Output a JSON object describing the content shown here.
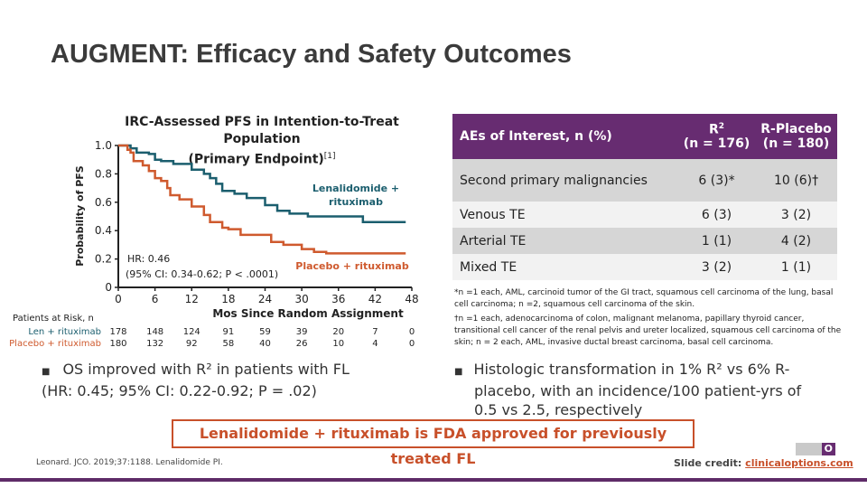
{
  "title": "AUGMENT: Efficacy and Safety Outcomes",
  "colors": {
    "len": "#1b5e6e",
    "placebo": "#cf5a2e",
    "header": "#672c71",
    "accent": "#c8502a"
  },
  "chart_data": {
    "type": "line",
    "title": "IRC-Assessed PFS in Intention-to-Treat Population",
    "title2": "(Primary Endpoint)",
    "title_ref": "[1]",
    "xlabel": "Mos Since Random Assignment",
    "ylabel": "Probability of PFS",
    "xlim": [
      0,
      48
    ],
    "ylim": [
      0,
      1.0
    ],
    "xticks": [
      "0",
      "6",
      "12",
      "18",
      "24",
      "30",
      "36",
      "42",
      "48"
    ],
    "yticks": [
      "0",
      "0.2",
      "0.4",
      "0.6",
      "0.8",
      "1.0"
    ],
    "series": [
      {
        "name": "Lenalidomide + rituximab",
        "step": true,
        "x": [
          0,
          2,
          3,
          5,
          6,
          7,
          9,
          12,
          14,
          15,
          16,
          17,
          19,
          21,
          24,
          26,
          28,
          31,
          40,
          47
        ],
        "y": [
          1,
          0.98,
          0.95,
          0.94,
          0.9,
          0.89,
          0.87,
          0.83,
          0.8,
          0.77,
          0.73,
          0.68,
          0.66,
          0.63,
          0.58,
          0.54,
          0.52,
          0.5,
          0.46,
          0.46
        ]
      },
      {
        "name": "Placebo + rituximab",
        "step": true,
        "x": [
          0,
          1.5,
          2,
          2.5,
          4,
          5,
          6,
          7,
          8,
          8.5,
          10,
          12,
          14,
          15,
          17,
          18,
          20,
          25,
          27,
          30,
          32,
          34,
          47
        ],
        "y": [
          1,
          0.97,
          0.95,
          0.89,
          0.86,
          0.82,
          0.77,
          0.75,
          0.7,
          0.65,
          0.62,
          0.57,
          0.51,
          0.46,
          0.42,
          0.41,
          0.37,
          0.32,
          0.3,
          0.27,
          0.25,
          0.24,
          0.24
        ]
      }
    ],
    "annotation_hr": "HR: 0.46",
    "annotation_ci": "(95% CI: 0.34-0.62; P < .0001)",
    "at_risk": {
      "label": "Patients at Risk, n",
      "rows": [
        {
          "name": "Len + rituximab",
          "values": [
            "178",
            "148",
            "124",
            "91",
            "59",
            "39",
            "20",
            "7",
            "0"
          ]
        },
        {
          "name": "Placebo + rituximab",
          "values": [
            "180",
            "132",
            "92",
            "58",
            "40",
            "26",
            "10",
            "4",
            "0"
          ]
        }
      ]
    }
  },
  "table": {
    "headers": [
      "AEs of Interest, n (%)",
      "R² (n = 176)",
      "R-Placebo (n = 180)"
    ],
    "h1a": "R",
    "h1sup": "2",
    "h1b": "(n = 176)",
    "h2a": "R-Placebo",
    "h2b": "(n = 180)",
    "rows": [
      [
        "Second primary malignancies",
        "6 (3)*",
        "10 (6)†"
      ],
      [
        "Venous TE",
        "6 (3)",
        "3 (2)"
      ],
      [
        "Arterial TE",
        "1 (1)",
        "4 (2)"
      ],
      [
        "Mixed TE",
        "3 (2)",
        "1 (1)"
      ]
    ]
  },
  "footnote1": "*n =1 each, AML, carcinoid tumor of the GI tract, squamous cell carcinoma of the lung, basal cell carcinoma; n =2, squamous cell carcinoma of the skin.",
  "footnote2": "†n =1 each, adenocarcinoma of colon, malignant melanoma, papillary thyroid cancer, transitional cell cancer of the renal pelvis and ureter localized, squamous cell carcinoma of the skin; n = 2 each, AML, invasive ductal breast carcinoma, basal cell carcinoma.",
  "bullet_os": "OS improved with R² in patients with FL (HR: 0.45; 95% CI: 0.22-0.92; P = .02)",
  "bullet_ht": "Histologic transformation in 1% R² vs 6% R-placebo, with an incidence/100 patient-yrs of 0.5 vs 2.5, respectively",
  "banner": "Lenalidomide + rituximab is FDA approved for previously treated FL",
  "reference": "Leonard. JCO. 2019;37:1188. Lenalidomide PI.",
  "credit_label": "Slide credit: ",
  "credit_link": "clinicaloptions.com",
  "logo": "CCO"
}
